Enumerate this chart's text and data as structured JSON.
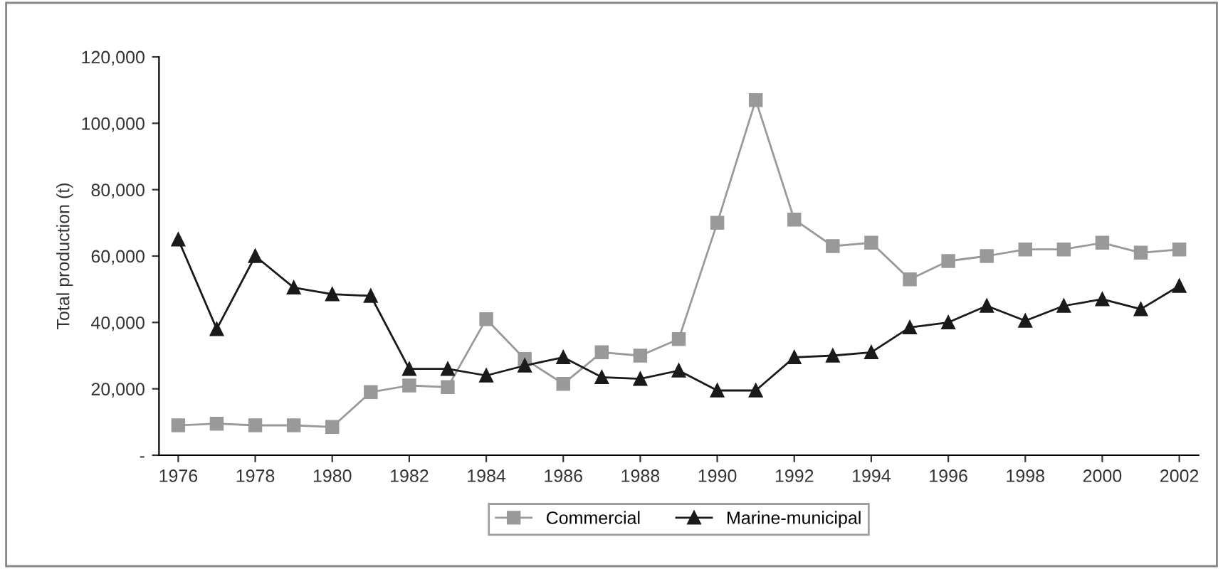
{
  "chart_data": {
    "type": "line",
    "ylabel": "Total production (t)",
    "x": [
      1976,
      1977,
      1978,
      1979,
      1980,
      1981,
      1982,
      1983,
      1984,
      1985,
      1986,
      1987,
      1988,
      1989,
      1990,
      1991,
      1992,
      1993,
      1994,
      1995,
      1996,
      1997,
      1998,
      1999,
      2000,
      2001,
      2002
    ],
    "series": [
      {
        "name": "Commercial",
        "color": "#999999",
        "marker": "square",
        "values": [
          9000,
          9500,
          9000,
          9000,
          8500,
          19000,
          21000,
          20500,
          41000,
          29000,
          21500,
          31000,
          30000,
          35000,
          70000,
          107000,
          71000,
          63000,
          64000,
          53000,
          58500,
          60000,
          62000,
          62000,
          64000,
          61000,
          62000
        ]
      },
      {
        "name": "Marine-municipal",
        "color": "#1a1a1a",
        "marker": "triangle",
        "values": [
          65000,
          38000,
          60000,
          50500,
          48500,
          48000,
          26000,
          26000,
          24000,
          27000,
          29500,
          23500,
          23000,
          25500,
          19500,
          19500,
          29500,
          30000,
          31000,
          38500,
          40000,
          45000,
          40500,
          45000,
          47000,
          44000,
          51000
        ]
      }
    ],
    "xlim": [
      1975.5,
      2002.5
    ],
    "xticks": [
      1976,
      1978,
      1980,
      1982,
      1984,
      1986,
      1988,
      1990,
      1992,
      1994,
      1996,
      1998,
      2000,
      2002
    ],
    "ylim": [
      0,
      120000
    ],
    "yticks": [
      {
        "value": 0,
        "label": "-"
      },
      {
        "value": 20000,
        "label": "20,000"
      },
      {
        "value": 40000,
        "label": "40,000"
      },
      {
        "value": 60000,
        "label": "60,000"
      },
      {
        "value": 80000,
        "label": "80,000"
      },
      {
        "value": 100000,
        "label": "100,000"
      },
      {
        "value": 120000,
        "label": "120,000"
      }
    ],
    "legend": "bottom",
    "grid": false
  }
}
